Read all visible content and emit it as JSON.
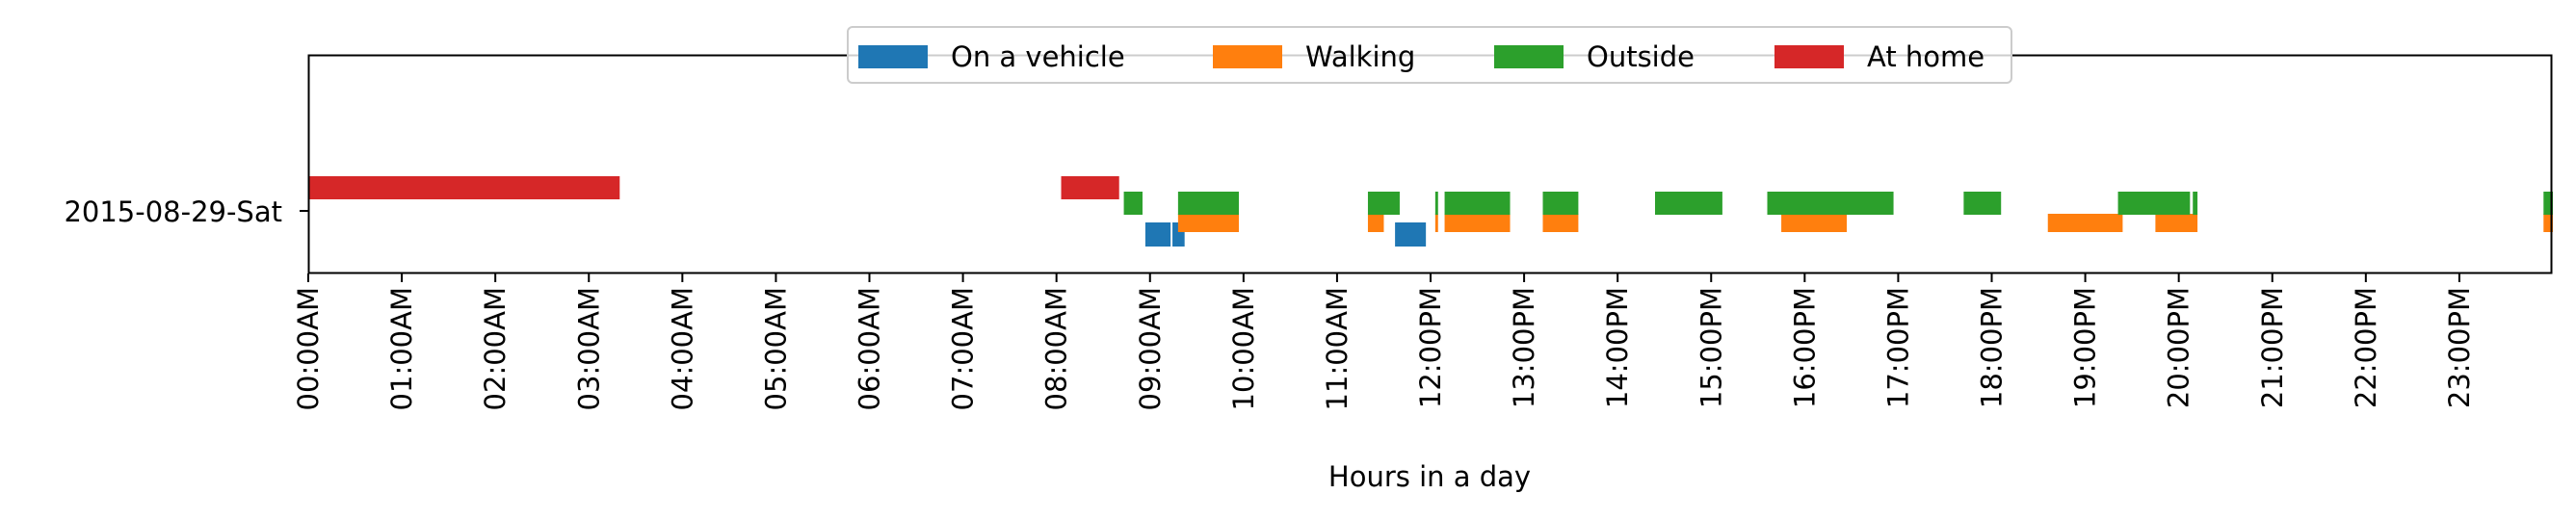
{
  "chart_data": {
    "type": "timeline",
    "xlabel": "Hours in a day",
    "ylabel": "",
    "xlim": [
      0,
      24
    ],
    "x_ticks": [
      "00:00AM",
      "01:00AM",
      "02:00AM",
      "03:00AM",
      "04:00AM",
      "05:00AM",
      "06:00AM",
      "07:00AM",
      "08:00AM",
      "09:00AM",
      "10:00AM",
      "11:00AM",
      "12:00PM",
      "13:00PM",
      "14:00PM",
      "15:00PM",
      "16:00PM",
      "17:00PM",
      "18:00PM",
      "19:00PM",
      "20:00PM",
      "21:00PM",
      "22:00PM",
      "23:00PM"
    ],
    "categories": [
      "2015-08-29-Sat"
    ],
    "legend_position": "top-center",
    "grid": false,
    "series": [
      {
        "name": "On a vehicle",
        "color": "#1f77b4",
        "lane": "bottom",
        "intervals": [
          [
            8.95,
            9.22
          ],
          [
            9.24,
            9.37
          ],
          [
            11.62,
            11.95
          ]
        ]
      },
      {
        "name": "Walking",
        "color": "#ff7f0e",
        "lane": "middle",
        "intervals": [
          [
            9.3,
            9.95
          ],
          [
            11.33,
            11.5
          ],
          [
            12.05,
            12.08
          ],
          [
            12.15,
            12.85
          ],
          [
            13.2,
            13.58
          ],
          [
            15.75,
            16.45
          ],
          [
            18.6,
            19.4
          ],
          [
            19.75,
            20.2
          ],
          [
            23.9,
            24.0
          ]
        ]
      },
      {
        "name": "Outside",
        "color": "#2ca02c",
        "lane": "upper",
        "intervals": [
          [
            8.72,
            8.92
          ],
          [
            9.3,
            9.95
          ],
          [
            11.33,
            11.67
          ],
          [
            12.05,
            12.08
          ],
          [
            12.15,
            12.85
          ],
          [
            13.2,
            13.58
          ],
          [
            14.4,
            15.12
          ],
          [
            15.6,
            16.95
          ],
          [
            17.7,
            18.1
          ],
          [
            19.35,
            20.12
          ],
          [
            20.15,
            20.2
          ],
          [
            23.9,
            24.0
          ]
        ]
      },
      {
        "name": "At home",
        "color": "#d62728",
        "lane": "top",
        "intervals": [
          [
            0.0,
            3.33
          ],
          [
            8.05,
            8.67
          ]
        ]
      }
    ]
  }
}
